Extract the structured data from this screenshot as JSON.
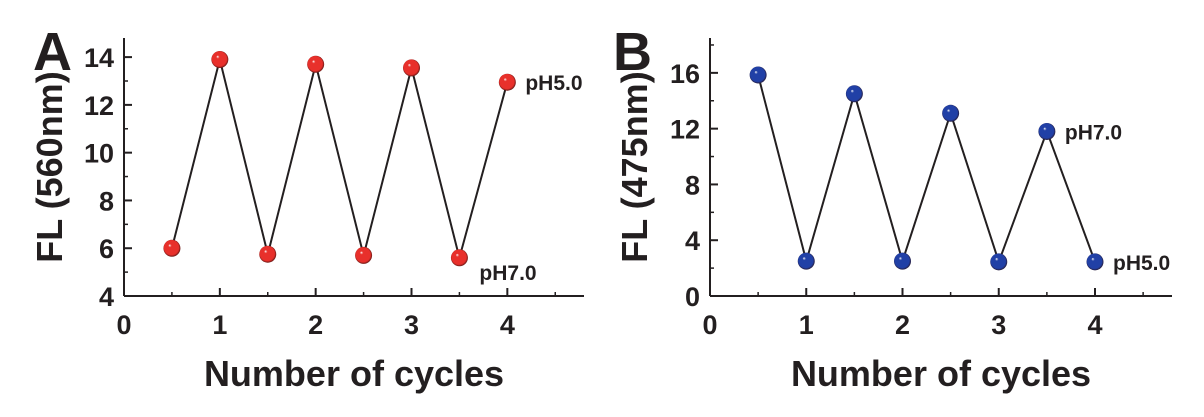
{
  "colors": {
    "background": "#ffffff",
    "axis": "#231f20",
    "line": "#231f20",
    "series_A": "#e8302b",
    "series_B": "#2140a6"
  },
  "chart_data": [
    {
      "type": "line",
      "panel_label": "A",
      "xlabel": "Number of cycles",
      "ylabel": "FL (560nm)",
      "xlim": [
        0,
        4.8
      ],
      "ylim": [
        4,
        14.8
      ],
      "xticks": [
        0,
        1,
        2,
        3,
        4
      ],
      "yticks": [
        4,
        6,
        8,
        10,
        12,
        14
      ],
      "grid": false,
      "markers": "spheres",
      "series": [
        {
          "color": "#e8302b",
          "points": [
            {
              "x": 0.5,
              "y": 6.0
            },
            {
              "x": 1.0,
              "y": 13.9
            },
            {
              "x": 1.5,
              "y": 5.75
            },
            {
              "x": 2.0,
              "y": 13.7
            },
            {
              "x": 2.5,
              "y": 5.7
            },
            {
              "x": 3.0,
              "y": 13.55
            },
            {
              "x": 3.5,
              "y": 5.6
            },
            {
              "x": 4.0,
              "y": 12.95
            }
          ]
        }
      ],
      "annotations": [
        {
          "text": "pH5.0",
          "x": 4.0,
          "y": 12.95,
          "position": "right"
        },
        {
          "text": "pH7.0",
          "x": 3.5,
          "y": 5.6,
          "position": "lower-right"
        }
      ]
    },
    {
      "type": "line",
      "panel_label": "B",
      "xlabel": "Number of cycles",
      "ylabel": "FL (475nm)",
      "xlim": [
        0,
        4.8
      ],
      "ylim": [
        0,
        18.5
      ],
      "xticks": [
        0,
        1,
        2,
        3,
        4
      ],
      "yticks": [
        0,
        4,
        8,
        12,
        16
      ],
      "grid": false,
      "markers": "spheres",
      "series": [
        {
          "color": "#2140a6",
          "points": [
            {
              "x": 0.5,
              "y": 15.85
            },
            {
              "x": 1.0,
              "y": 2.5
            },
            {
              "x": 1.5,
              "y": 14.5
            },
            {
              "x": 2.0,
              "y": 2.5
            },
            {
              "x": 2.5,
              "y": 13.1
            },
            {
              "x": 3.0,
              "y": 2.45
            },
            {
              "x": 3.5,
              "y": 11.8
            },
            {
              "x": 4.0,
              "y": 2.45
            }
          ]
        }
      ],
      "annotations": [
        {
          "text": "pH7.0",
          "x": 3.5,
          "y": 11.8,
          "position": "right"
        },
        {
          "text": "pH5.0",
          "x": 4.0,
          "y": 2.45,
          "position": "right"
        }
      ]
    }
  ]
}
